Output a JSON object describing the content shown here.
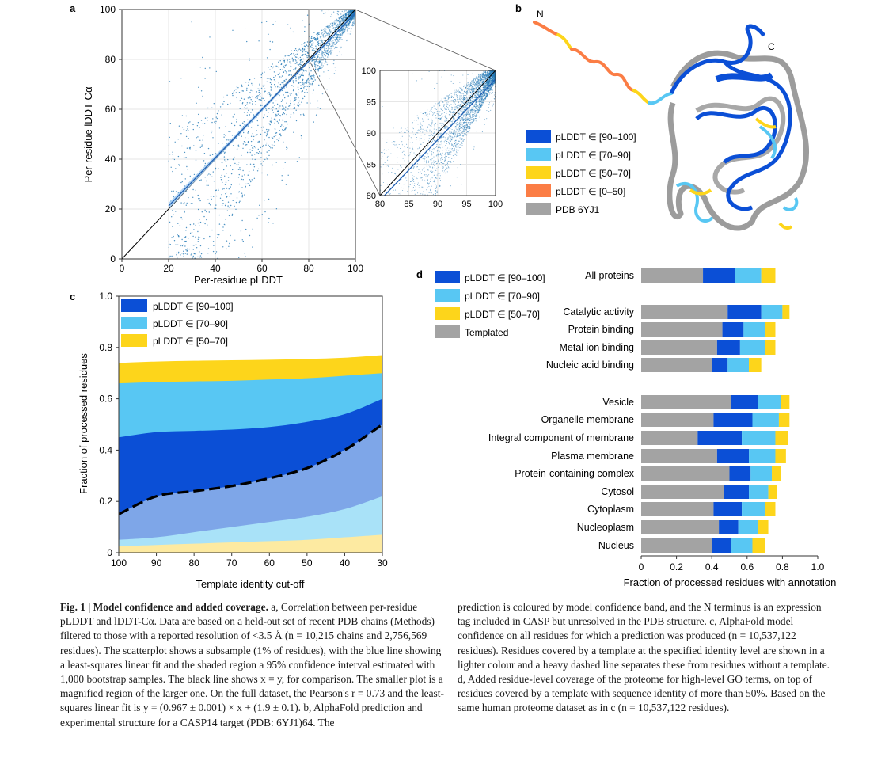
{
  "panels": {
    "a": "a",
    "b": "b",
    "c": "c",
    "d": "d"
  },
  "colors": {
    "very_high": "#0b4fd6",
    "confident": "#58c7f3",
    "low": "#fdd51b",
    "very_low": "#fb7d45",
    "pdb": "#a3a3a3",
    "scatter": "#1f77b4",
    "templated_very_high": "#7ea6e8",
    "templated_confident": "#a9e2f8",
    "templated_low": "#fdeaa1"
  },
  "chart_data": [
    {
      "panel": "a",
      "type": "scatter",
      "xlabel": "Per-residue pLDDT",
      "ylabel": "Per-residue lDDT-Cα",
      "xlim": [
        0,
        100
      ],
      "ylim": [
        0,
        100
      ],
      "xticks": [
        "0",
        "20",
        "40",
        "60",
        "80",
        "100"
      ],
      "yticks": [
        "0",
        "20",
        "40",
        "60",
        "80",
        "100"
      ],
      "grid": true,
      "reference_line": "y = x",
      "fit_line": {
        "slope": 0.967,
        "intercept": 1.9,
        "x_range": [
          20,
          100
        ]
      },
      "inset": {
        "xlim": [
          80,
          100
        ],
        "ylim": [
          80,
          100
        ],
        "xticks": [
          "80",
          "85",
          "90",
          "95",
          "100"
        ],
        "yticks": [
          "80",
          "85",
          "90",
          "95",
          "100"
        ]
      }
    },
    {
      "panel": "c",
      "type": "area",
      "xlabel": "Template identity cut-off",
      "ylabel": "Fraction of processed residues",
      "x": [
        100,
        90,
        80,
        70,
        60,
        50,
        40,
        30
      ],
      "xlim": [
        100,
        30
      ],
      "ylim": [
        0,
        1.0
      ],
      "xticks": [
        "100",
        "90",
        "80",
        "70",
        "60",
        "50",
        "40",
        "30"
      ],
      "yticks": [
        "0",
        "0.2",
        "0.4",
        "0.6",
        "0.8",
        "1.0"
      ],
      "legend": [
        "pLDDT ∈ [90–100]",
        "pLDDT ∈ [70–90]",
        "pLDDT ∈ [50–70]"
      ],
      "legend_position": "top-left",
      "series": [
        {
          "name": "pLDDT ∈ [50–70]",
          "cumulative": [
            0.74,
            0.745,
            0.748,
            0.75,
            0.752,
            0.755,
            0.76,
            0.77
          ]
        },
        {
          "name": "pLDDT ∈ [70–90]",
          "cumulative": [
            0.66,
            0.665,
            0.668,
            0.67,
            0.675,
            0.68,
            0.69,
            0.7
          ]
        },
        {
          "name": "pLDDT ∈ [90–100]",
          "cumulative": [
            0.45,
            0.47,
            0.475,
            0.48,
            0.49,
            0.51,
            0.54,
            0.6
          ]
        }
      ],
      "templated_boundary": [
        0.15,
        0.22,
        0.24,
        0.26,
        0.29,
        0.33,
        0.4,
        0.5
      ],
      "templated_confident_top": [
        0.05,
        0.06,
        0.08,
        0.1,
        0.12,
        0.14,
        0.17,
        0.22
      ],
      "templated_low_top": [
        0.025,
        0.03,
        0.035,
        0.04,
        0.045,
        0.05,
        0.06,
        0.07
      ]
    },
    {
      "panel": "d",
      "type": "bar",
      "orientation": "horizontal",
      "stacked": true,
      "xlabel": "Fraction of processed residues with annotation",
      "xlim": [
        0,
        1.0
      ],
      "xticks": [
        "0",
        "0.2",
        "0.4",
        "0.6",
        "0.8",
        "1.0"
      ],
      "legend": [
        "pLDDT ∈ [90–100]",
        "pLDDT ∈ [70–90]",
        "pLDDT ∈ [50–70]",
        "Templated"
      ],
      "categories": [
        "All proteins",
        "Catalytic activity",
        "Protein binding",
        "Metal ion binding",
        "Nucleic acid binding",
        "Vesicle",
        "Organelle membrane",
        "Integral component of membrane",
        "Plasma membrane",
        "Protein-containing complex",
        "Cytosol",
        "Cytoplasm",
        "Nucleoplasm",
        "Nucleus"
      ],
      "series": [
        {
          "name": "Templated",
          "values": [
            0.35,
            0.49,
            0.46,
            0.43,
            0.4,
            0.51,
            0.41,
            0.32,
            0.43,
            0.5,
            0.47,
            0.41,
            0.44,
            0.4
          ]
        },
        {
          "name": "pLDDT ∈ [90–100]",
          "values": [
            0.18,
            0.19,
            0.12,
            0.13,
            0.09,
            0.15,
            0.22,
            0.25,
            0.18,
            0.12,
            0.14,
            0.16,
            0.11,
            0.11
          ]
        },
        {
          "name": "pLDDT ∈ [70–90]",
          "values": [
            0.15,
            0.12,
            0.12,
            0.14,
            0.12,
            0.13,
            0.15,
            0.19,
            0.15,
            0.12,
            0.11,
            0.13,
            0.11,
            0.12
          ]
        },
        {
          "name": "pLDDT ∈ [50–70]",
          "values": [
            0.08,
            0.04,
            0.06,
            0.06,
            0.07,
            0.05,
            0.06,
            0.07,
            0.06,
            0.05,
            0.05,
            0.06,
            0.06,
            0.07
          ]
        }
      ]
    }
  ],
  "panel_b": {
    "legend": [
      "pLDDT ∈ [90–100]",
      "pLDDT ∈ [70–90]",
      "pLDDT ∈ [50–70]",
      "pLDDT ∈ [0–50]",
      "PDB 6YJ1"
    ],
    "n_label": "N",
    "c_label": "C"
  },
  "caption": {
    "fig_label": "Fig. 1 | Model confidence and added coverage.",
    "left_text": " a, Correlation between per-residue pLDDT and lDDT-Cα. Data are based on a held-out set of recent PDB chains (Methods) filtered to those with a reported resolution of <3.5 Å (n = 10,215 chains and 2,756,569 residues). The scatterplot shows a subsample (1% of residues), with the blue line showing a least-squares linear fit and the shaded region a 95% confidence interval estimated with 1,000 bootstrap samples. The black line shows x = y, for comparison. The smaller plot is a magnified region of the larger one. On the full dataset, the Pearson's r = 0.73 and the least-squares linear fit is y = (0.967 ± 0.001) × x + (1.9 ± 0.1). b, AlphaFold prediction and experimental structure for a CASP14 target (PDB: 6YJ1)64. The",
    "right_text": "prediction is coloured by model confidence band, and the N terminus is an expression tag included in CASP but unresolved in the PDB structure. c, AlphaFold model confidence on all residues for which a prediction was produced (n = 10,537,122 residues). Residues covered by a template at the specified identity level are shown in a lighter colour and a heavy dashed line separates these from residues without a template. d, Added residue-level coverage of the proteome for high-level GO terms, on top of residues covered by a template with sequence identity of more than 50%. Based on the same human proteome dataset as in c (n = 10,537,122 residues)."
  }
}
